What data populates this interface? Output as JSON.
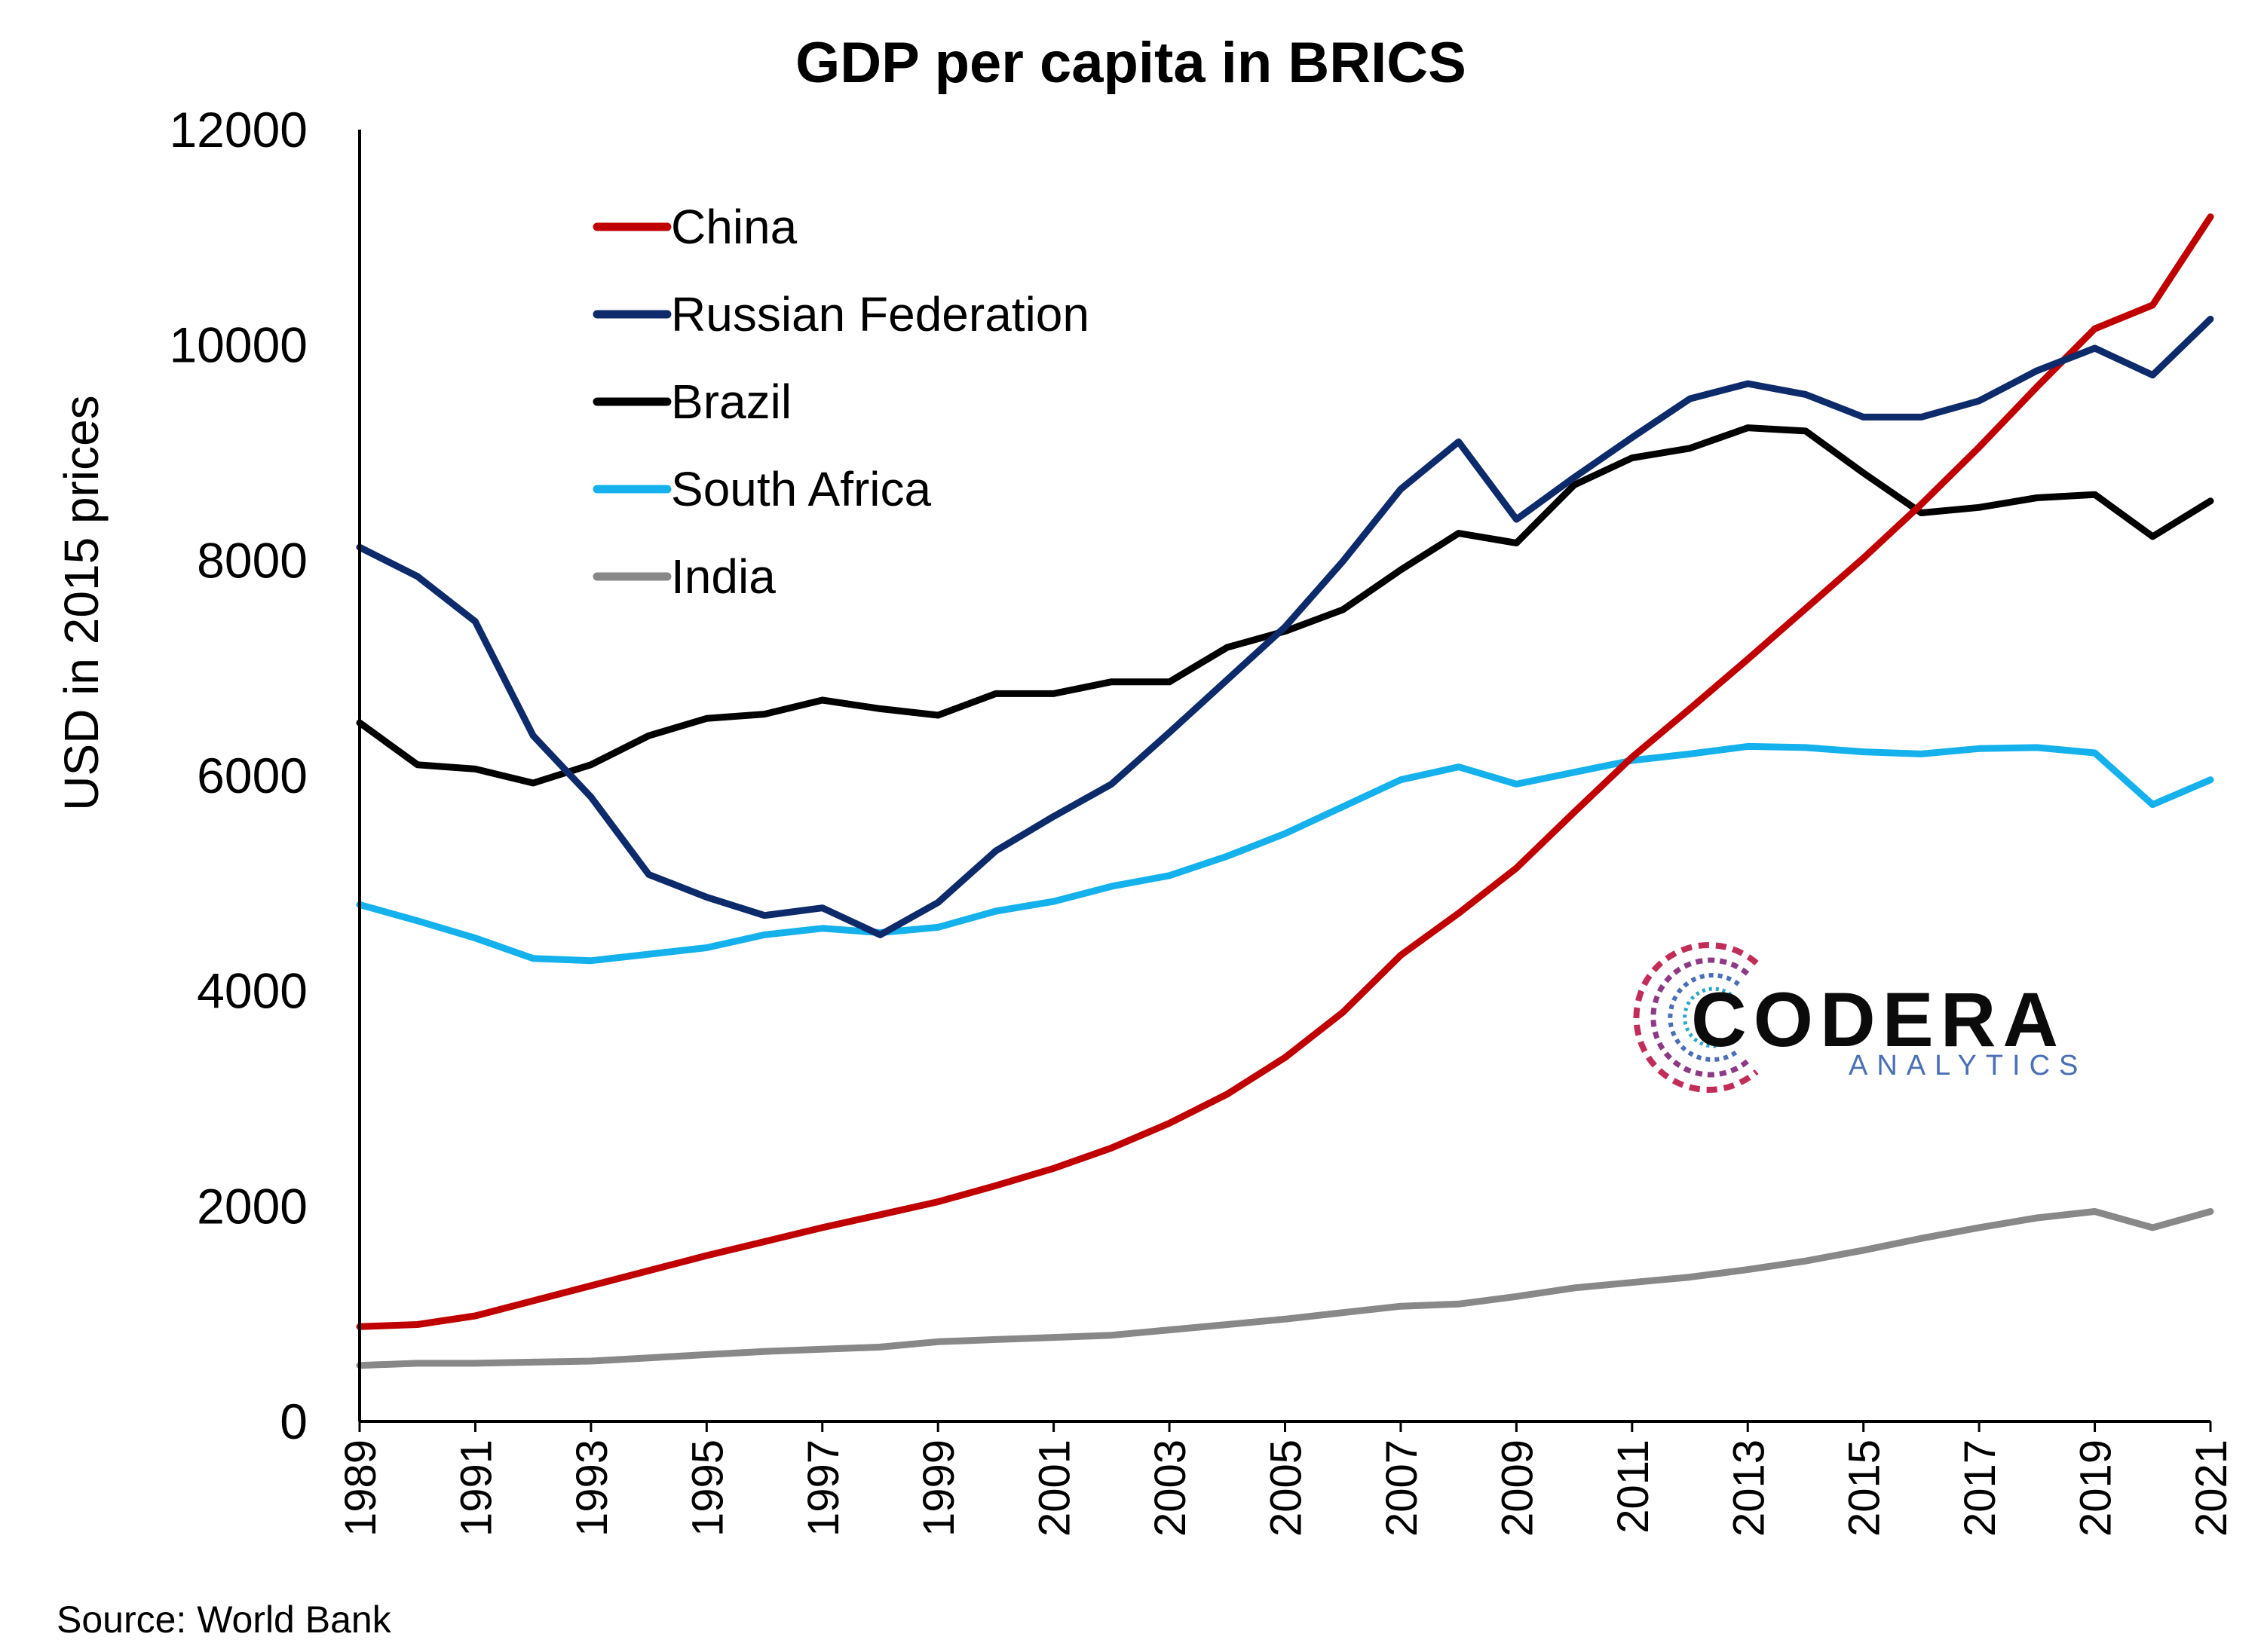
{
  "chart_data": {
    "type": "line",
    "title": "GDP per capita in BRICS",
    "ylabel": "USD in 2015 prices",
    "xlabel": "",
    "ylim": [
      0,
      12000
    ],
    "yticks": [
      0,
      2000,
      4000,
      6000,
      8000,
      10000,
      12000
    ],
    "x": [
      1989,
      1990,
      1991,
      1992,
      1993,
      1994,
      1995,
      1996,
      1997,
      1998,
      1999,
      2000,
      2001,
      2002,
      2003,
      2004,
      2005,
      2006,
      2007,
      2008,
      2009,
      2010,
      2011,
      2012,
      2013,
      2014,
      2015,
      2016,
      2017,
      2018,
      2019,
      2020,
      2021
    ],
    "xtick_labels": [
      "1989",
      "1991",
      "1993",
      "1995",
      "1997",
      "1999",
      "2001",
      "2003",
      "2005",
      "2007",
      "2009",
      "2011",
      "2013",
      "2015",
      "2017",
      "2019",
      "2021"
    ],
    "legend_position": "top-left",
    "grid": false,
    "series": [
      {
        "name": "China",
        "color": "#c00000",
        "values": [
          880,
          900,
          980,
          1120,
          1260,
          1400,
          1540,
          1670,
          1800,
          1920,
          2040,
          2190,
          2350,
          2540,
          2770,
          3040,
          3380,
          3800,
          4330,
          4720,
          5140,
          5660,
          6170,
          6620,
          7080,
          7550,
          8020,
          8520,
          9050,
          9610,
          10150,
          10370,
          11190
        ]
      },
      {
        "name": "Russian Federation",
        "color": "#0d2a6b",
        "values": [
          8120,
          7850,
          7430,
          6370,
          5800,
          5080,
          4870,
          4700,
          4770,
          4520,
          4820,
          5300,
          5620,
          5920,
          6400,
          6890,
          7380,
          7990,
          8660,
          9100,
          8380,
          8770,
          9140,
          9500,
          9640,
          9540,
          9330,
          9330,
          9480,
          9760,
          9970,
          9720,
          10240
        ]
      },
      {
        "name": "Brazil",
        "color": "#000000",
        "values": [
          6490,
          6100,
          6060,
          5930,
          6100,
          6370,
          6530,
          6570,
          6700,
          6620,
          6560,
          6760,
          6760,
          6870,
          6870,
          7190,
          7340,
          7540,
          7910,
          8250,
          8160,
          8700,
          8950,
          9040,
          9230,
          9200,
          8810,
          8440,
          8490,
          8580,
          8610,
          8220,
          8550
        ]
      },
      {
        "name": "South Africa",
        "color": "#14b1ec",
        "values": [
          4800,
          4650,
          4490,
          4300,
          4280,
          4340,
          4400,
          4520,
          4580,
          4540,
          4590,
          4740,
          4830,
          4970,
          5070,
          5250,
          5460,
          5710,
          5960,
          6080,
          5920,
          6030,
          6140,
          6200,
          6270,
          6260,
          6220,
          6200,
          6250,
          6260,
          6210,
          5730,
          5960
        ]
      },
      {
        "name": "India",
        "color": "#888888",
        "values": [
          520,
          540,
          540,
          550,
          560,
          590,
          620,
          650,
          670,
          690,
          740,
          760,
          780,
          800,
          850,
          900,
          950,
          1010,
          1070,
          1090,
          1160,
          1240,
          1290,
          1340,
          1410,
          1490,
          1590,
          1700,
          1800,
          1890,
          1950,
          1800,
          1950
        ]
      }
    ]
  },
  "source": "Source: World Bank",
  "logo": {
    "main": "CODERA",
    "sub": "ANALYTICS"
  }
}
